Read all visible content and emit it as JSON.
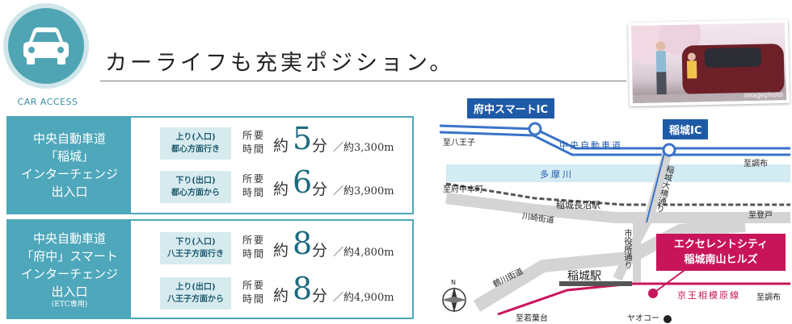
{
  "header": {
    "access_label": "CAR ACCESS",
    "headline": "カーライフも充実ポジション。"
  },
  "photo": {
    "caption": "imagephoto"
  },
  "routes": [
    {
      "title_lines": [
        "中央自動車道",
        "「稲城」",
        "インターチェンジ",
        "出入口"
      ],
      "note": "",
      "entries": [
        {
          "badge_top": "上り(入口)",
          "badge_bottom": "都心方面行き",
          "label_top": "所要",
          "label_bottom": "時間",
          "prefix": "約",
          "minutes": "5",
          "unit": "分",
          "distance": "／約3,300m"
        },
        {
          "badge_top": "下り(出口)",
          "badge_bottom": "都心方面から",
          "label_top": "所要",
          "label_bottom": "時間",
          "prefix": "約",
          "minutes": "6",
          "unit": "分",
          "distance": "／約3,900m"
        }
      ]
    },
    {
      "title_lines": [
        "中央自動車道",
        "「府中」スマート",
        "インターチェンジ",
        "出入口"
      ],
      "note": "(ETC専用)",
      "entries": [
        {
          "badge_top": "下り(入口)",
          "badge_bottom": "八王子方面行き",
          "label_top": "所要",
          "label_bottom": "時間",
          "prefix": "約",
          "minutes": "8",
          "unit": "分",
          "distance": "／約4,800m"
        },
        {
          "badge_top": "上り(出口)",
          "badge_bottom": "八王子方面から",
          "label_top": "所要",
          "label_bottom": "時間",
          "prefix": "約",
          "minutes": "8",
          "unit": "分",
          "distance": "／約4,900m"
        }
      ]
    }
  ],
  "map": {
    "ic_fuchu": "府中スマートIC",
    "ic_inagi": "稲城IC",
    "to_hachioji": "至八王子",
    "to_chofu_top": "至調布",
    "expressway": "中央自動車道",
    "river": "多摩川",
    "to_fuchuhoncho": "至府中本町",
    "inagi_naganuma": "稲城長沼駅",
    "kawasaki_kaido": "川崎街道",
    "ohashi_dori": "稲城大橋通り",
    "to_noboto": "至登戸",
    "shiyakusho_dori": "市役所通り",
    "tsurukawa_kaido": "鶴川街道",
    "inagi_station": "稲城駅",
    "keio_line": "京王相模原線",
    "to_chofu_bottom": "至調布",
    "to_wakabadai": "至若葉台",
    "yaokoo": "ヤオコー",
    "property_line1": "エクセレントシティ",
    "property_line2": "稲城南山ヒルズ",
    "compass_n": "N"
  },
  "colors": {
    "accent": "#4ea7ba",
    "badge_bg": "#d7ebef",
    "ic_tag": "#1f5aa7",
    "property": "#c8155a",
    "expressway": "#3a73c9",
    "river": "#d3ebf3",
    "rail": "#c8155a"
  },
  "icons": [
    "car-icon",
    "compass-icon"
  ]
}
